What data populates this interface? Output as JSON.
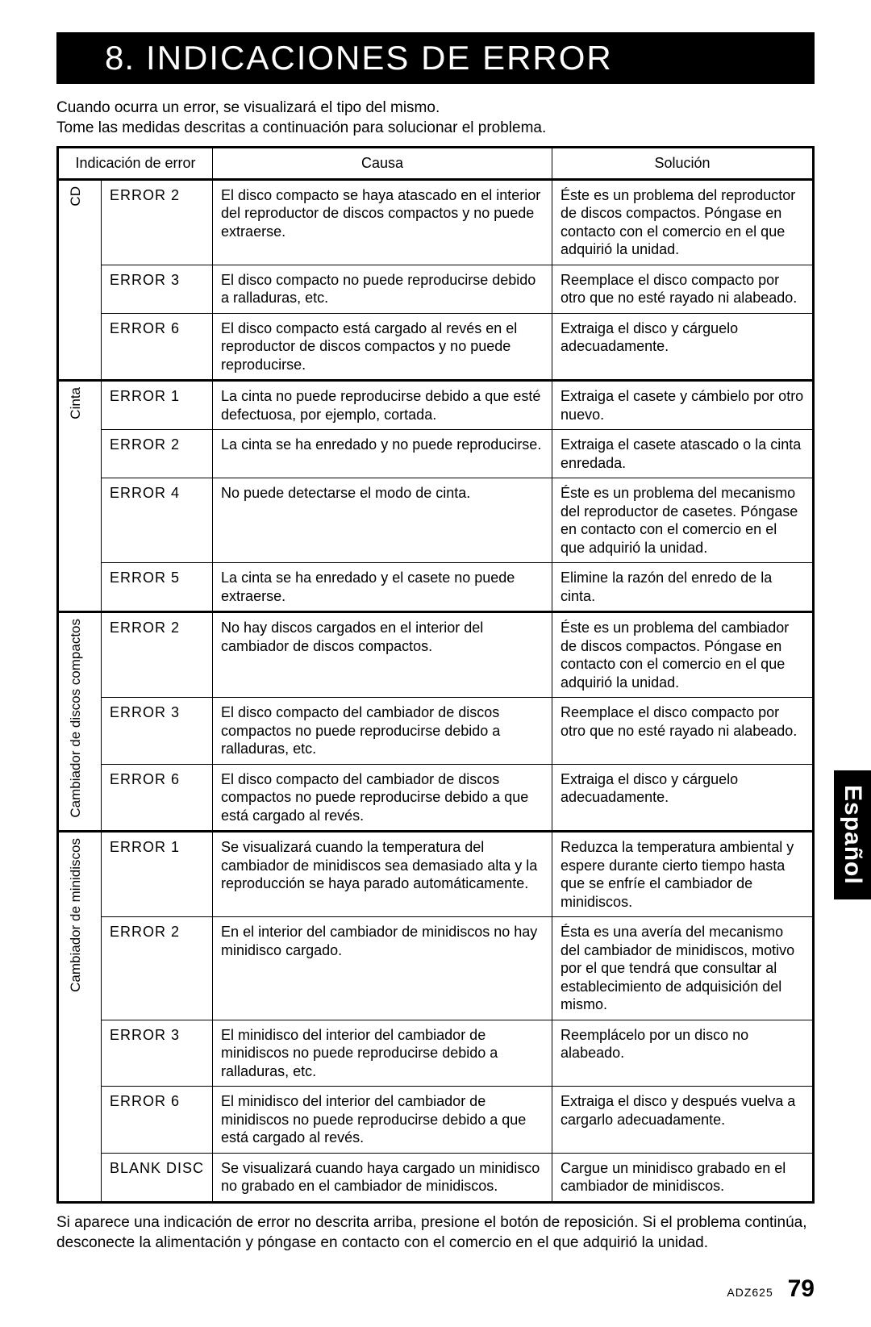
{
  "section_number": "8.",
  "title": "INDICACIONES DE ERROR",
  "intro_line1": "Cuando ocurra un error, se visualizará el tipo del mismo.",
  "intro_line2": "Tome las medidas descritas a continuación para solucionar el problema.",
  "headers": {
    "indication": "Indicación de error",
    "cause": "Causa",
    "solution": "Solución"
  },
  "side_tab": "Español",
  "footnote": "Si aparece una indicación de error no descrita arriba, presione el botón de reposición. Si el problema continúa, desconecte la alimentación y póngase en contacto con el comercio en el que adquirió la unidad.",
  "model": "ADZ625",
  "page_num": "79",
  "groups": [
    {
      "category": "CD",
      "rows": [
        {
          "ind": "ERROR 2",
          "cause": "El disco compacto se haya atascado en el interior del reproductor de discos compactos y no puede extraerse.",
          "sol": "Éste es un problema del reproductor de discos compactos. Póngase en contacto con el comercio en el que adquirió la unidad."
        },
        {
          "ind": "ERROR 3",
          "cause": "El disco compacto no puede reproducirse debido a ralladuras, etc.",
          "sol": "Reemplace el disco compacto por otro que no esté rayado ni alabeado."
        },
        {
          "ind": "ERROR 6",
          "cause": "El disco compacto está cargado al revés en el reproductor de discos compactos y no puede reproducirse.",
          "sol": "Extraiga el disco y cárguelo adecuadamente."
        }
      ]
    },
    {
      "category": "Cinta",
      "rows": [
        {
          "ind": "ERROR 1",
          "cause": "La cinta no puede reproducirse debido a que esté defectuosa, por ejemplo, cortada.",
          "sol": "Extraiga el casete y cámbielo por otro nuevo."
        },
        {
          "ind": "ERROR 2",
          "cause": "La cinta se ha enredado y no puede reproducirse.",
          "sol": "Extraiga el casete atascado o la cinta enredada."
        },
        {
          "ind": "ERROR 4",
          "cause": "No puede detectarse el modo de cinta.",
          "sol": "Éste es un problema del mecanismo del reproductor de casetes. Póngase en contacto con el comercio en el que adquirió la unidad."
        },
        {
          "ind": "ERROR 5",
          "cause": "La cinta se ha enredado y el casete no puede extraerse.",
          "sol": "Elimine la razón del enredo de la cinta."
        }
      ]
    },
    {
      "category": "Cambiador de discos compactos",
      "rows": [
        {
          "ind": "ERROR 2",
          "cause": "No hay discos cargados en el interior del cambiador de discos compactos.",
          "sol": "Éste es un problema del cambiador de discos compactos. Póngase en contacto con el comercio en el que adquirió la unidad."
        },
        {
          "ind": "ERROR 3",
          "cause": "El disco compacto del cambiador de discos compactos no puede reproducirse debido a ralladuras, etc.",
          "sol": "Reemplace el disco compacto por otro que no esté rayado ni alabeado."
        },
        {
          "ind": "ERROR 6",
          "cause": "El disco compacto del cambiador de discos compactos no puede reproducirse debido a que está cargado al revés.",
          "sol": "Extraiga el disco y cárguelo adecuadamente."
        }
      ]
    },
    {
      "category": "Cambiador de minidiscos",
      "rows": [
        {
          "ind": "ERROR 1",
          "cause": "Se visualizará cuando la temperatura del cambiador de minidiscos sea demasiado alta y la reproducción se haya parado automáticamente.",
          "sol": "Reduzca la temperatura ambiental y espere durante cierto tiempo hasta que se enfríe el cambiador de minidiscos."
        },
        {
          "ind": "ERROR 2",
          "cause": "En el interior del cambiador de minidiscos no hay minidisco cargado.",
          "sol": "Ésta es una avería del mecanismo del cambiador de minidiscos, motivo por el que tendrá que consultar al establecimiento de adquisición del mismo."
        },
        {
          "ind": "ERROR 3",
          "cause": "El minidisco del interior del cambiador de minidiscos no puede reproducirse debido a ralladuras, etc.",
          "sol": "Reemplácelo por un disco no alabeado."
        },
        {
          "ind": "ERROR 6",
          "cause": "El minidisco del interior del cambiador de minidiscos no puede reproducirse debido a que está cargado al revés.",
          "sol": "Extraiga el disco y después vuelva a cargarlo adecuadamente."
        },
        {
          "ind": "BLANK DISC",
          "cause": "Se visualizará cuando haya cargado un minidisco no grabado en el cambiador de minidiscos.",
          "sol": "Cargue un minidisco grabado en el cambiador de minidiscos."
        }
      ]
    }
  ]
}
